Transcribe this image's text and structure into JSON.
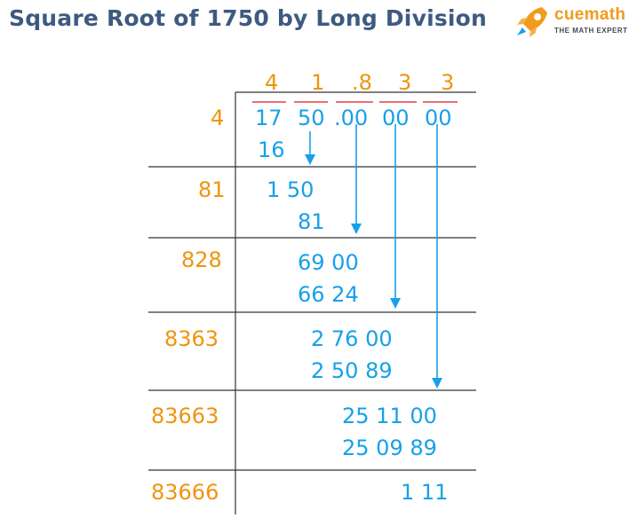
{
  "title": "Square Root of 1750 by Long Division",
  "logo": {
    "name": "cuemath",
    "tagline": "THE MATH EXPERT",
    "icon": "rocket-icon"
  },
  "colors": {
    "title": "#3d5a80",
    "digits_blue": "#17a0ea",
    "divisor_orange": "#ef9410",
    "bar_red": "#e8707a",
    "arrow": "#17a0ea"
  },
  "quotient": [
    "4",
    "1",
    ".8",
    "3",
    "3"
  ],
  "dividend_groups": [
    "17",
    "50",
    ".00",
    "00",
    "00"
  ],
  "divisors": [
    "4",
    "81",
    "828",
    "8363",
    "83663",
    "83666"
  ],
  "steps": {
    "s1_sub": "16",
    "s2_top": "1 50",
    "s2_sub": "81",
    "s3_top": "69 00",
    "s3_sub": "66 24",
    "s4_top": "2 76 00",
    "s4_sub": "2 50 89",
    "s5_top": "25  11  00",
    "s5_sub": "25 09 89",
    "remainder": "1  11"
  }
}
